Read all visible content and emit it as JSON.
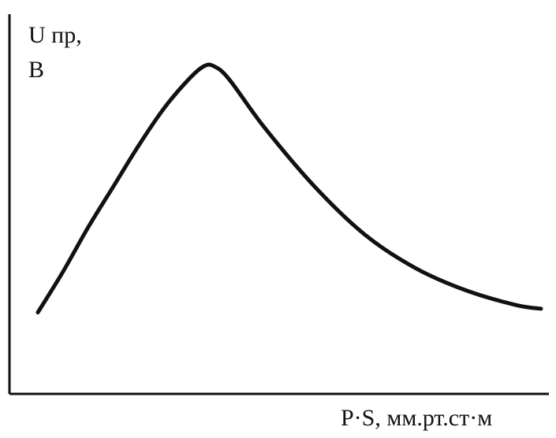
{
  "chart_data": {
    "type": "line",
    "title": "",
    "ylabel_line1": "U пр,",
    "ylabel_line2": "В",
    "xlabel": "P·S, мм.рт.ст·м",
    "grid": false,
    "legend": "none",
    "axis_ticks": false,
    "series": [
      {
        "color": "#111111",
        "x": [
          0.0,
          0.05,
          0.1,
          0.15,
          0.2,
          0.25,
          0.3,
          0.33,
          0.35,
          0.38,
          0.45,
          0.55,
          0.65,
          0.75,
          0.85,
          0.95,
          1.0
        ],
        "y": [
          0.22,
          0.33,
          0.45,
          0.56,
          0.67,
          0.77,
          0.85,
          0.885,
          0.885,
          0.85,
          0.72,
          0.56,
          0.43,
          0.34,
          0.28,
          0.24,
          0.23
        ]
      }
    ],
    "xlim": [
      0,
      1
    ],
    "ylim": [
      0,
      1
    ]
  }
}
